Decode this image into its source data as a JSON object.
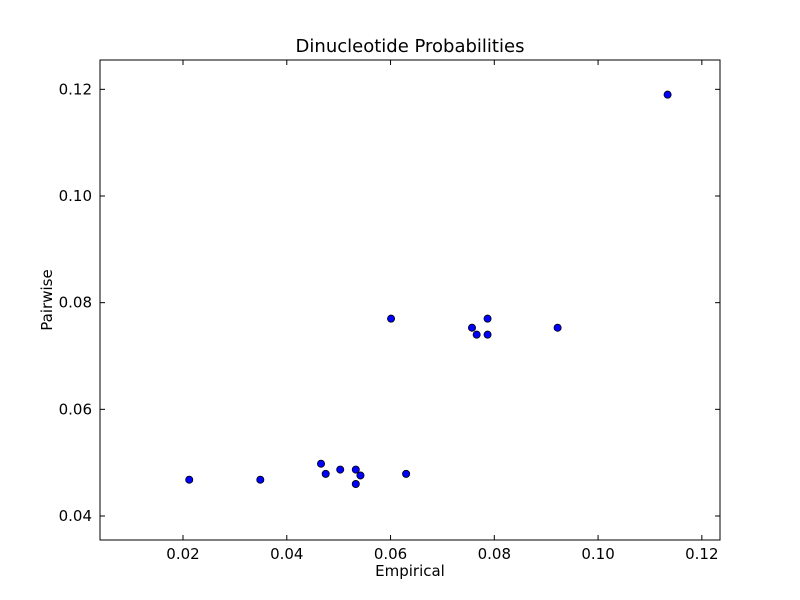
{
  "chart_data": {
    "type": "scatter",
    "title": "Dinucleotide Probabilities",
    "xlabel": "Empirical",
    "ylabel": "Pairwise",
    "xlim": [
      0.004,
      0.1235
    ],
    "ylim": [
      0.0355,
      0.1255
    ],
    "xticks": [
      0.02,
      0.04,
      0.06,
      0.08,
      0.1,
      0.12
    ],
    "xtick_labels": [
      "0.02",
      "0.04",
      "0.06",
      "0.08",
      "0.10",
      "0.12"
    ],
    "yticks": [
      0.04,
      0.06,
      0.08,
      0.1,
      0.12
    ],
    "ytick_labels": [
      "0.04",
      "0.06",
      "0.08",
      "0.10",
      "0.12"
    ],
    "grid": false,
    "marker_color": "#0000ff",
    "marker_edge_color": "#000000",
    "points": [
      {
        "x": 0.0212,
        "y": 0.0468
      },
      {
        "x": 0.0349,
        "y": 0.0468
      },
      {
        "x": 0.0466,
        "y": 0.0498
      },
      {
        "x": 0.0475,
        "y": 0.0479
      },
      {
        "x": 0.0503,
        "y": 0.0487
      },
      {
        "x": 0.0533,
        "y": 0.0487
      },
      {
        "x": 0.0542,
        "y": 0.0476
      },
      {
        "x": 0.0533,
        "y": 0.046
      },
      {
        "x": 0.063,
        "y": 0.0479
      },
      {
        "x": 0.0601,
        "y": 0.077
      },
      {
        "x": 0.0757,
        "y": 0.0753
      },
      {
        "x": 0.0766,
        "y": 0.074
      },
      {
        "x": 0.0787,
        "y": 0.077
      },
      {
        "x": 0.0787,
        "y": 0.074
      },
      {
        "x": 0.0922,
        "y": 0.0753
      },
      {
        "x": 0.1134,
        "y": 0.119
      }
    ]
  }
}
